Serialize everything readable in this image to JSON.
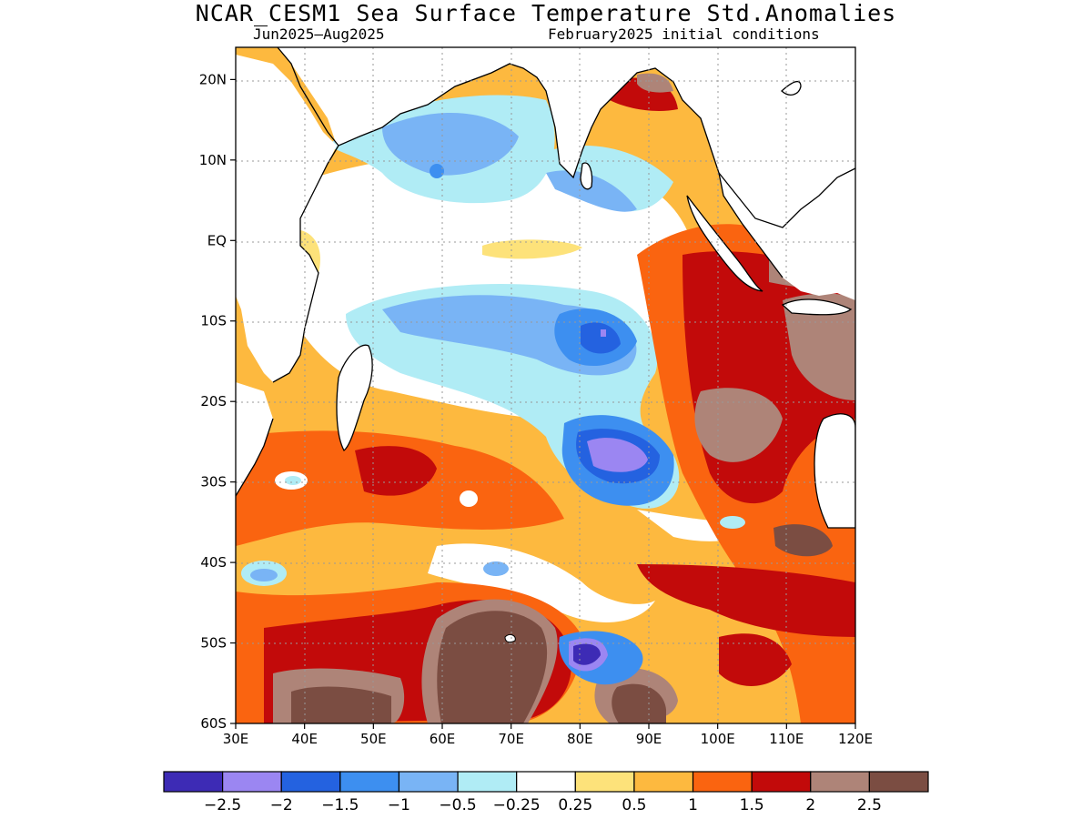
{
  "title": "NCAR_CESM1 Sea Surface Temperature Std.Anomalies",
  "subtitle_left": "Jun2025–Aug2025",
  "subtitle_right": "February2025 initial conditions",
  "map": {
    "lon_range": [
      30,
      120
    ],
    "lat_range": [
      -60,
      24
    ],
    "lon_ticks": [
      "30E",
      "40E",
      "50E",
      "60E",
      "70E",
      "80E",
      "90E",
      "100E",
      "110E",
      "120E"
    ],
    "lat_ticks": [
      "20N",
      "10N",
      "EQ",
      "10S",
      "20S",
      "30S",
      "40S",
      "50S",
      "60S"
    ],
    "lat_tick_values": [
      20,
      10,
      0,
      -10,
      -20,
      -30,
      -40,
      -50,
      -60
    ],
    "lon_tick_values": [
      30,
      40,
      50,
      60,
      70,
      80,
      90,
      100,
      110,
      120
    ],
    "gridlines": "dotted"
  },
  "legend": {
    "colors": [
      "#3d2bb5",
      "#9b86f2",
      "#2462e0",
      "#3d8ff0",
      "#79b4f5",
      "#b0ecf5",
      "#ffffff",
      "#fde27a",
      "#fdb93f",
      "#fa6410",
      "#c20a0a",
      "#ae8478",
      "#7b4d42"
    ],
    "labels": [
      "−2.5",
      "−2",
      "−1.5",
      "−1",
      "−0.5",
      "−0.25",
      "0.25",
      "0.5",
      "1",
      "1.5",
      "2",
      "2.5"
    ]
  }
}
